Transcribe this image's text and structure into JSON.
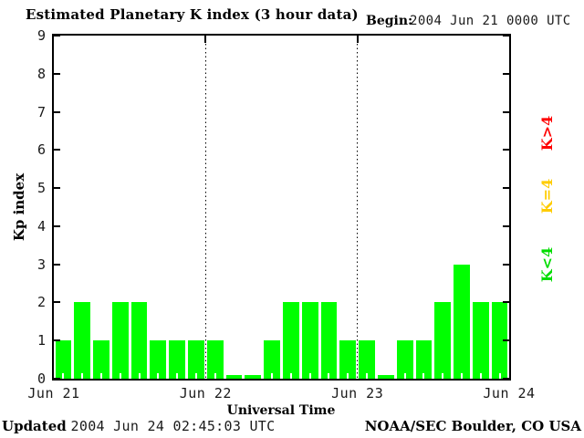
{
  "title": "Estimated Planetary K index (3 hour data)",
  "begin": {
    "label": "Begin:",
    "value": "2004 Jun 21 0000 UTC"
  },
  "axes": {
    "ylabel": "Kp index",
    "xlabel": "Universal Time"
  },
  "legend": [
    {
      "name": "k-gt-4",
      "label": "K>4",
      "color": "#ff0000"
    },
    {
      "name": "k-eq-4",
      "label": "K=4",
      "color": "#ffcc00"
    },
    {
      "name": "k-lt-4",
      "label": "K<4",
      "color": "#00dd00"
    }
  ],
  "footer": {
    "updated_label": "Updated",
    "updated_value": "2004 Jun 24 02:45:03 UTC",
    "source": "NOAA/SEC Boulder, CO USA"
  },
  "chart_data": {
    "type": "bar",
    "title": "Estimated Planetary K index (3 hour data)",
    "xlabel": "Universal Time",
    "ylabel": "Kp index",
    "ylim": [
      0,
      9
    ],
    "y_ticks": [
      0,
      1,
      2,
      3,
      4,
      5,
      6,
      7,
      8,
      9
    ],
    "x_tick_labels": [
      "Jun 21",
      "Jun 22",
      "Jun 23",
      "Jun 24"
    ],
    "begin": "2004 Jun 21 0000 UTC",
    "interval_hours": 3,
    "bar_color": "#00ff00",
    "grid": "dotted vertical lines at day boundaries",
    "legend_position": "right margin, rotated",
    "series": [
      {
        "name": "Kp",
        "values": [
          1,
          2,
          1,
          2,
          2,
          1,
          1,
          1,
          1,
          0,
          0,
          1,
          2,
          2,
          2,
          1,
          1,
          0,
          1,
          1,
          2,
          3,
          2,
          2
        ]
      }
    ]
  }
}
